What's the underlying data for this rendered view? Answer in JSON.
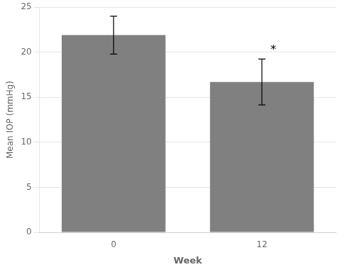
{
  "chart_data": {
    "type": "bar",
    "categories": [
      "0",
      "12"
    ],
    "values": [
      21.9,
      16.7
    ],
    "errors": [
      2.1,
      2.55
    ],
    "color": "#808080",
    "xlabel": "Week",
    "ylabel": "Mean IOP (mmHg)",
    "ylim": [
      0,
      25
    ],
    "yticks": [
      0,
      5,
      10,
      15,
      20,
      25
    ],
    "grid": true,
    "annotations": [
      {
        "text": "*",
        "category": "12"
      }
    ]
  }
}
